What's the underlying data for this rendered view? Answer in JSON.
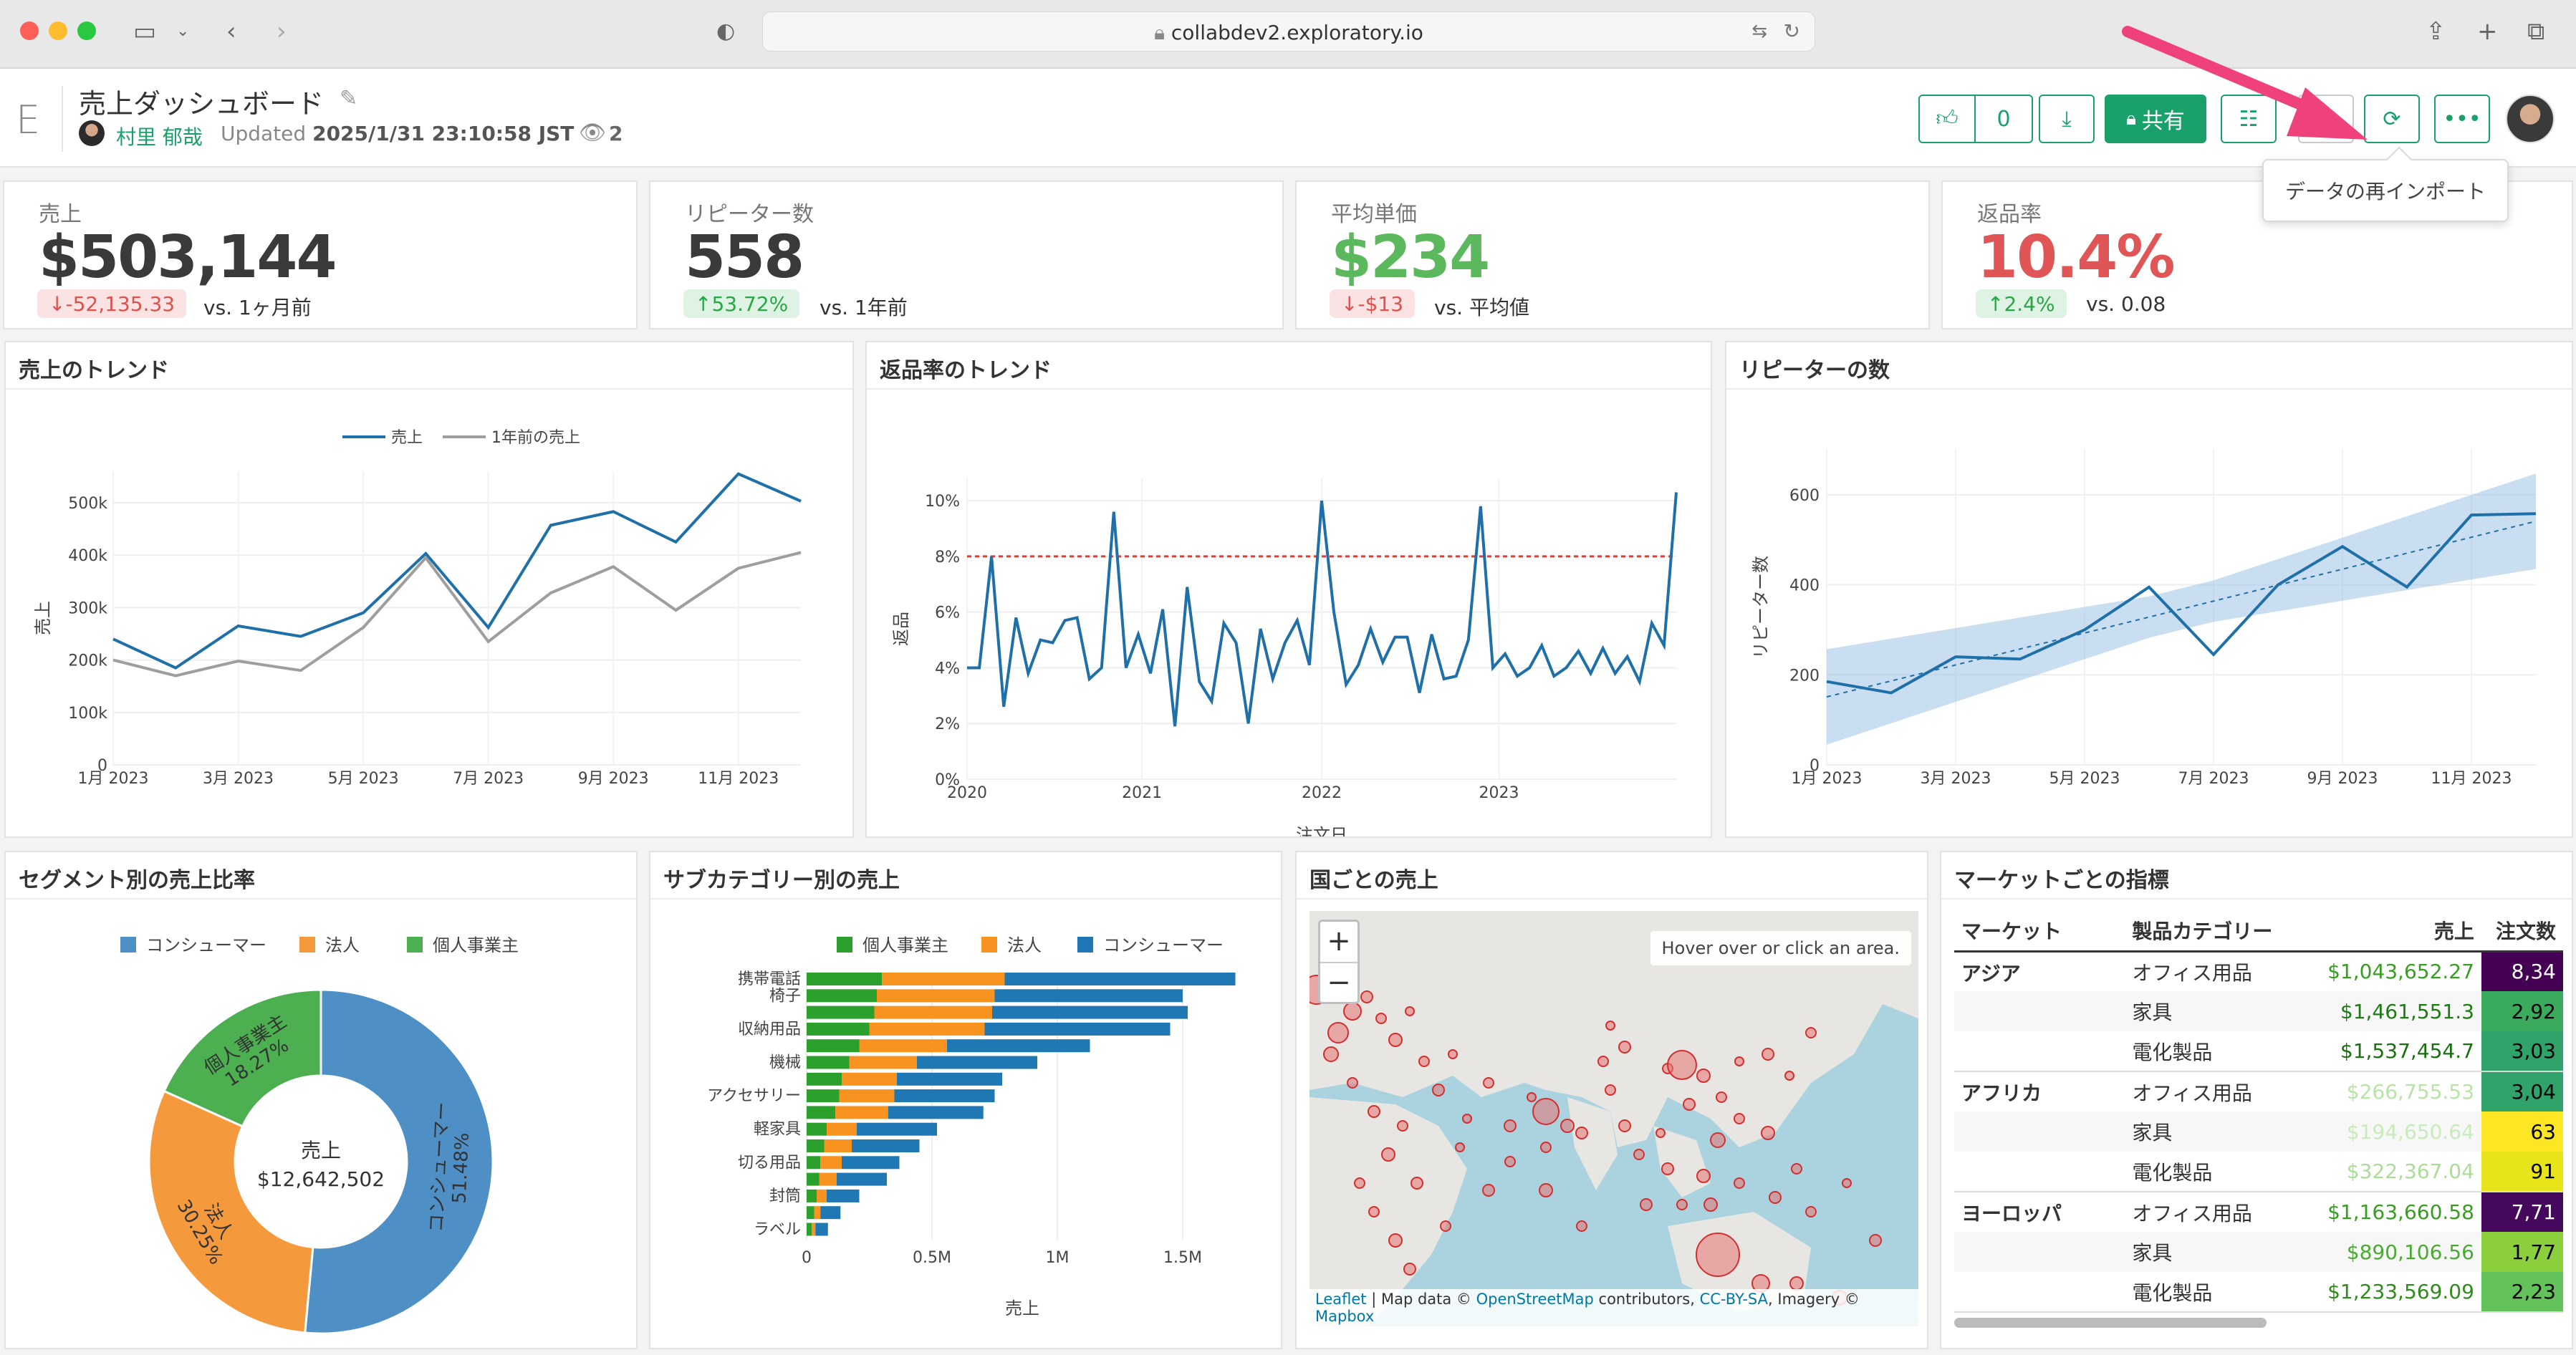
{
  "browser": {
    "url": "collabdev2.exploratory.io"
  },
  "header": {
    "logo": "E",
    "title": "売上ダッシュボード",
    "author": "村里 郁哉",
    "updated_label": "Updated",
    "updated_time": "2025/1/31 23:10:58 JST",
    "view_count": "2",
    "like_count": "0",
    "share_label": "共有",
    "reimport_tooltip": "データの再インポート"
  },
  "kpis": [
    {
      "label": "売上",
      "value": "$503,144",
      "value_color": "#3a3a3a",
      "delta": "-52,135.33",
      "direction": "down",
      "compare": "vs. 1ヶ月前"
    },
    {
      "label": "リピーター数",
      "value": "558",
      "value_color": "#3a3a3a",
      "delta": "53.72%",
      "direction": "up",
      "compare": "vs. 1年前"
    },
    {
      "label": "平均単価",
      "value": "$234",
      "value_color": "#5cb85c",
      "delta": "-$13",
      "direction": "down",
      "compare": "vs. 平均値"
    },
    {
      "label": "返品率",
      "value": "10.4%",
      "value_color": "#e05555",
      "delta": "2.4%",
      "direction": "up",
      "compare": "vs. 0.08"
    }
  ],
  "panels": {
    "sales_trend": "売上のトレンド",
    "return_trend": "返品率のトレンド",
    "repeaters": "リピーターの数",
    "segment": "セグメント別の売上比率",
    "subcategory": "サブカテゴリー別の売上",
    "country": "国ごとの売上",
    "market": "マーケットごとの指標"
  },
  "chart_data": [
    {
      "type": "line",
      "title": "売上のトレンド",
      "ylabel": "売上",
      "x": [
        "2023-01",
        "2023-02",
        "2023-03",
        "2023-04",
        "2023-05",
        "2023-06",
        "2023-07",
        "2023-08",
        "2023-09",
        "2023-10",
        "2023-11",
        "2023-12"
      ],
      "x_tick_labels": [
        "1月 2023",
        "3月 2023",
        "5月 2023",
        "7月 2023",
        "9月 2023",
        "11月 2023"
      ],
      "y_tick_labels": [
        "0",
        "100k",
        "200k",
        "300k",
        "400k",
        "500k"
      ],
      "ylim": [
        0,
        560000
      ],
      "legend": "top-center",
      "series": [
        {
          "name": "売上",
          "color": "#1f6fa8",
          "values": [
            240000,
            185000,
            265000,
            245000,
            290000,
            403000,
            262000,
            457000,
            483000,
            425000,
            555000,
            503000
          ]
        },
        {
          "name": "1年前の売上",
          "color": "#9e9e9e",
          "values": [
            200000,
            170000,
            198000,
            180000,
            262000,
            395000,
            235000,
            328000,
            378000,
            295000,
            375000,
            405000
          ]
        }
      ]
    },
    {
      "type": "line",
      "title": "返品率のトレンド",
      "xlabel": "注文日",
      "ylabel": "返品",
      "x_tick_labels": [
        "2020",
        "2021",
        "2022",
        "2023"
      ],
      "y_tick_labels": [
        "0%",
        "2%",
        "4%",
        "6%",
        "8%",
        "10%"
      ],
      "ylim": [
        0,
        10.8
      ],
      "reference_line": {
        "value": 8,
        "color": "#e53935",
        "style": "dashed"
      },
      "series": [
        {
          "color": "#1f6fa8",
          "values": [
            4.0,
            4.0,
            8.0,
            2.6,
            5.8,
            3.8,
            5.0,
            4.9,
            5.7,
            5.8,
            3.6,
            4.0,
            9.6,
            4.0,
            5.2,
            3.8,
            6.1,
            1.9,
            6.9,
            3.5,
            2.8,
            5.6,
            4.9,
            2.0,
            5.4,
            3.6,
            4.9,
            5.7,
            4.1,
            10.0,
            6.0,
            3.4,
            4.1,
            5.4,
            4.2,
            5.1,
            5.1,
            3.1,
            5.2,
            3.6,
            3.7,
            5.0,
            9.8,
            4.0,
            4.5,
            3.7,
            4.0,
            4.8,
            3.7,
            4.0,
            4.6,
            3.8,
            4.7,
            3.8,
            4.4,
            3.5,
            5.6,
            4.8,
            10.3
          ]
        }
      ]
    },
    {
      "type": "line",
      "title": "リピーターの数",
      "ylabel": "リピーター数",
      "x_tick_labels": [
        "1月 2023",
        "3月 2023",
        "5月 2023",
        "7月 2023",
        "9月 2023",
        "11月 2023"
      ],
      "y_tick_labels": [
        "0",
        "200",
        "400",
        "600"
      ],
      "ylim": [
        0,
        700
      ],
      "series": [
        {
          "color": "#1f6fa8",
          "values": [
            185,
            160,
            240,
            235,
            300,
            395,
            245,
            400,
            485,
            395,
            555,
            558
          ]
        }
      ],
      "trend": {
        "style": "dashed",
        "band": true
      }
    },
    {
      "type": "pie",
      "title": "セグメント別の売上比率",
      "center_label": "売上",
      "center_value": "$12,642,502",
      "legend": "top",
      "slices": [
        {
          "name": "コンシューマー",
          "value": 51.48,
          "label": "51.48%",
          "color": "#4e8fc5"
        },
        {
          "name": "法人",
          "value": 30.25,
          "label": "30.25%",
          "color": "#f59a3c"
        },
        {
          "name": "個人事業主",
          "value": 18.27,
          "label": "18.27%",
          "color": "#4caf50"
        }
      ]
    },
    {
      "type": "bar",
      "orientation": "horizontal",
      "stacked": true,
      "title": "サブカテゴリー別の売上",
      "xlabel": "売上",
      "x_tick_labels": [
        "0",
        "0.5M",
        "1M",
        "1.5M"
      ],
      "xlim": [
        0,
        1720000
      ],
      "legend": "top",
      "categories": [
        "携帯電話",
        "椅子",
        "",
        "収納用品",
        "",
        "機械",
        "",
        "アクセサリー",
        "",
        "軽家具",
        "",
        "切る用品",
        "",
        "封筒",
        "",
        "ラベル"
      ],
      "series": [
        {
          "name": "個人事業主",
          "color": "#2ca02c",
          "values": [
            300000,
            280000,
            270000,
            250000,
            210000,
            170000,
            140000,
            130000,
            115000,
            80000,
            70000,
            55000,
            50000,
            40000,
            30000,
            20000
          ]
        },
        {
          "name": "法人",
          "color": "#f7931e",
          "values": [
            490000,
            470000,
            470000,
            460000,
            350000,
            270000,
            220000,
            220000,
            210000,
            120000,
            110000,
            85000,
            70000,
            40000,
            25000,
            15000
          ]
        },
        {
          "name": "コンシューマー",
          "color": "#1f77b4",
          "values": [
            920000,
            750000,
            780000,
            740000,
            570000,
            480000,
            420000,
            400000,
            380000,
            320000,
            270000,
            230000,
            200000,
            130000,
            80000,
            50000
          ]
        }
      ]
    }
  ],
  "map": {
    "info": "Hover over or click an area.",
    "zoom_in": "+",
    "zoom_out": "−",
    "attribution": {
      "leaflet": "Leaflet",
      "mapdata": "Map data ©",
      "osm": "OpenStreetMap",
      "contributors": "contributors,",
      "license": "CC-BY-SA",
      "imagery": ", Imagery ©",
      "mapbox": "Mapbox"
    }
  },
  "market_table": {
    "headers": [
      "マーケット",
      "製品カテゴリー",
      "売上",
      "注文数"
    ],
    "rows": [
      {
        "market": "アジア",
        "category": "オフィス用品",
        "sales": "$1,043,652.27",
        "sales_color": "#3a9d23",
        "orders": "8,34",
        "orders_bg": "#440154",
        "orders_color": "#ffffff"
      },
      {
        "market": "",
        "category": "家具",
        "sales": "$1,461,551.3",
        "sales_color": "#1e7a14",
        "orders": "2,92",
        "orders_bg": "#3aaa5c",
        "orders_color": "#000000"
      },
      {
        "market": "",
        "category": "電化製品",
        "sales": "$1,537,454.7",
        "sales_color": "#1a7010",
        "orders": "3,03",
        "orders_bg": "#2fa36a",
        "orders_color": "#000000"
      },
      {
        "market": "アフリカ",
        "category": "オフィス用品",
        "sales": "$266,755.53",
        "sales_color": "#b9e3a8",
        "orders": "3,04",
        "orders_bg": "#2fa36a",
        "orders_color": "#000000"
      },
      {
        "market": "",
        "category": "家具",
        "sales": "$194,650.64",
        "sales_color": "#c9ebbb",
        "orders": "63",
        "orders_bg": "#fde725",
        "orders_color": "#000000"
      },
      {
        "market": "",
        "category": "電化製品",
        "sales": "$322,367.04",
        "sales_color": "#addc99",
        "orders": "91",
        "orders_bg": "#e7e419",
        "orders_color": "#000000"
      },
      {
        "market": "ヨーロッパ",
        "category": "オフィス用品",
        "sales": "$1,163,660.58",
        "sales_color": "#3a9d23",
        "orders": "7,71",
        "orders_bg": "#46085c",
        "orders_color": "#ffffff"
      },
      {
        "market": "",
        "category": "家具",
        "sales": "$890,106.56",
        "sales_color": "#4aaa33",
        "orders": "1,77",
        "orders_bg": "#8ccf3d",
        "orders_color": "#000000"
      },
      {
        "market": "",
        "category": "電化製品",
        "sales": "$1,233,569.09",
        "sales_color": "#2f8c1c",
        "orders": "2,23",
        "orders_bg": "#63c25a",
        "orders_color": "#000000"
      }
    ]
  }
}
